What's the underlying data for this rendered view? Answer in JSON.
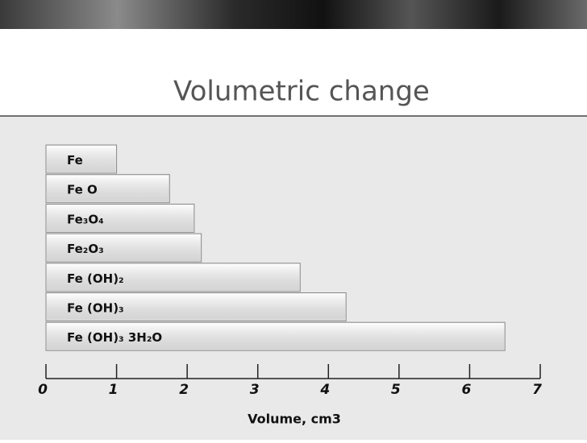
{
  "chart_data": {
    "type": "bar",
    "orientation": "horizontal",
    "title": "Volumetric change",
    "categories": [
      "Fe",
      "Fe O",
      "Fe₃O₄",
      "Fe₂O₃",
      "Fe (OH)₂",
      "Fe (OH)₃",
      "Fe (OH)₃ 3H₂O"
    ],
    "values": [
      1.0,
      1.75,
      2.1,
      2.2,
      3.6,
      4.25,
      6.5
    ],
    "color": "#ececec",
    "x_label": "Volume, cm3",
    "xlim": [
      0,
      7
    ],
    "xticks": [
      0,
      1,
      2,
      3,
      4,
      5,
      6,
      7
    ]
  }
}
